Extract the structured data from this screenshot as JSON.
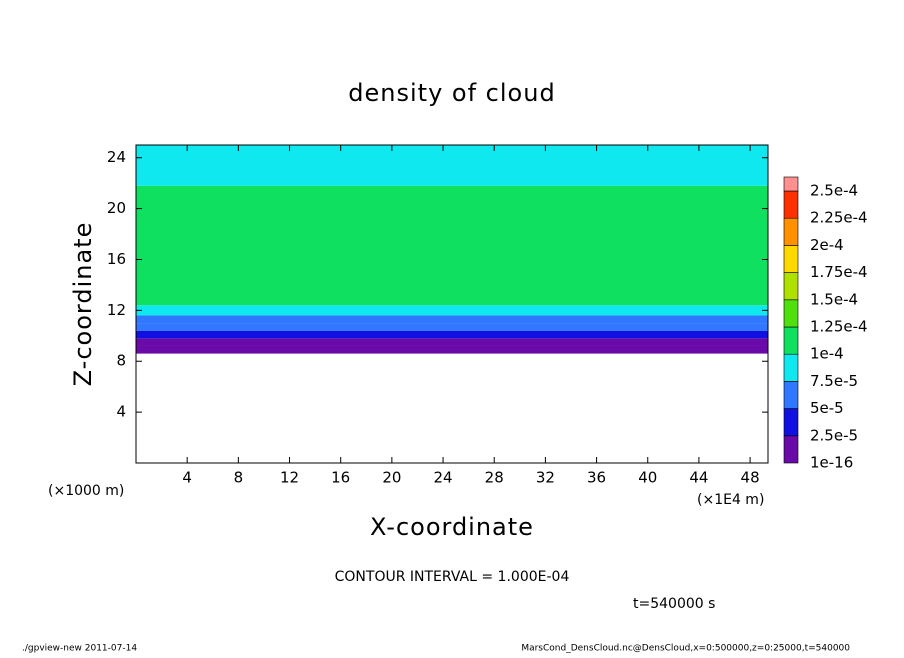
{
  "chart_data": {
    "type": "heatmap",
    "title": "density of cloud",
    "xlabel": "X-coordinate",
    "ylabel": "Z-coordinate",
    "x_unit_left": "(×1000 m)",
    "x_unit_right": "(×1E4 m)",
    "contour_text": "CONTOUR INTERVAL = 1.000E-04",
    "time_text": "t=540000 s",
    "footer_left": "./gpview-new  2011-07-14",
    "footer_right": "MarsCond_DensCloud.nc@DensCloud,x=0:500000,z=0:25000,t=540000",
    "xlim": [
      0,
      49.4
    ],
    "ylim": [
      0,
      25
    ],
    "xticks": [
      4,
      8,
      12,
      16,
      20,
      24,
      28,
      32,
      36,
      40,
      44,
      48
    ],
    "yticks": [
      4,
      8,
      12,
      16,
      20,
      24
    ],
    "field": {
      "z": [
        8.6,
        9.2,
        9.8,
        10.4,
        11,
        11.6,
        12.4,
        21.8,
        25
      ],
      "values": [
        5e-06,
        2e-05,
        4e-05,
        5.5e-05,
        7e-05,
        9e-05,
        0.00011,
        9e-05
      ]
    },
    "colorbar": {
      "levels": [
        {
          "value": 1e-16,
          "label": "1e-16"
        },
        {
          "value": 2.5e-05,
          "label": "2.5e-5"
        },
        {
          "value": 5e-05,
          "label": "5e-5"
        },
        {
          "value": 7.5e-05,
          "label": "7.5e-5"
        },
        {
          "value": 0.0001,
          "label": "1e-4"
        },
        {
          "value": 0.000125,
          "label": "1.25e-4"
        },
        {
          "value": 0.00015,
          "label": "1.5e-4"
        },
        {
          "value": 0.000175,
          "label": "1.75e-4"
        },
        {
          "value": 0.0002,
          "label": "2e-4"
        },
        {
          "value": 0.000225,
          "label": "2.25e-4"
        },
        {
          "value": 0.00025,
          "label": "2.5e-4"
        }
      ],
      "colors": [
        "#6a0aa8",
        "#1010e0",
        "#2f78ff",
        "#10e8f0",
        "#10e060",
        "#50e010",
        "#b0e000",
        "#ffd800",
        "#ff9000",
        "#ff3000",
        "#ff9090"
      ]
    }
  }
}
